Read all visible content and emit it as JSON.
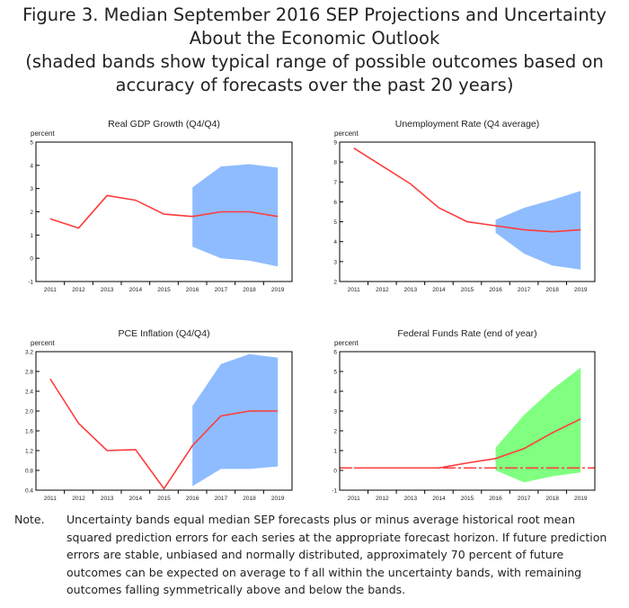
{
  "title": {
    "lines": [
      "Figure 3. Median September 2016 SEP Projections and Uncertainty",
      "About the Economic Outlook",
      "(shaded bands show typical range of possible outcomes based on",
      "accuracy of forecasts over the past 20 years)"
    ]
  },
  "note": {
    "label": "Note.",
    "text": "Uncertainty bands equal median SEP forecasts plus or minus average historical root mean squared prediction errors for each series at the appropriate forecast horizon. If future prediction errors are stable, unbiased and normally distributed, approximately 70 percent of future outcomes can be expected on average to f all within the uncertainty bands, with remaining outcomes falling symmetrically above and below the bands."
  },
  "colors": {
    "line": "#ff3b3b",
    "band_blue": "#8fbcff",
    "band_green": "#80ff80",
    "axis": "#000000"
  },
  "chart_data": [
    {
      "type": "line",
      "title": "Real GDP Growth (Q4/Q4)",
      "ylabel": "percent",
      "categories": [
        "2011",
        "2012",
        "2013",
        "2014",
        "2015",
        "2016",
        "2017",
        "2018",
        "2019"
      ],
      "ylim": [
        -1,
        5
      ],
      "yticks": [
        "-1",
        "0",
        "1",
        "2",
        "3",
        "4",
        "5"
      ],
      "series": [
        {
          "values": [
            1.7,
            1.3,
            2.7,
            2.5,
            1.9,
            1.8,
            2.0,
            2.0,
            1.8
          ]
        }
      ],
      "band": {
        "categories": [
          "2016",
          "2017",
          "2018",
          "2019"
        ],
        "upper": [
          3.05,
          3.95,
          4.05,
          3.9
        ],
        "lower": [
          0.5,
          0.0,
          -0.1,
          -0.35
        ],
        "color": "#8fbcff"
      }
    },
    {
      "type": "line",
      "title": "Unemployment Rate (Q4 average)",
      "ylabel": "percent",
      "categories": [
        "2011",
        "2012",
        "2013",
        "2014",
        "2015",
        "2016",
        "2017",
        "2018",
        "2019"
      ],
      "ylim": [
        2,
        9
      ],
      "yticks": [
        "2",
        "3",
        "4",
        "5",
        "6",
        "7",
        "8",
        "9"
      ],
      "series": [
        {
          "values": [
            8.7,
            7.8,
            6.9,
            5.7,
            5.0,
            4.8,
            4.6,
            4.5,
            4.6
          ]
        }
      ],
      "band": {
        "categories": [
          "2016",
          "2017",
          "2018",
          "2019"
        ],
        "upper": [
          5.1,
          5.7,
          6.1,
          6.55
        ],
        "lower": [
          4.45,
          3.4,
          2.8,
          2.6
        ],
        "color": "#8fbcff"
      }
    },
    {
      "type": "line",
      "title": "PCE Inflation (Q4/Q4)",
      "ylabel": "percent",
      "categories": [
        "2011",
        "2012",
        "2013",
        "2014",
        "2015",
        "2016",
        "2017",
        "2018",
        "2019"
      ],
      "ylim": [
        0.4,
        3.2
      ],
      "yticks": [
        "0.4",
        "0.8",
        "1.2",
        "1.6",
        "2.0",
        "2.4",
        "2.8",
        "3.2"
      ],
      "series": [
        {
          "values": [
            2.65,
            1.75,
            1.2,
            1.22,
            0.43,
            1.3,
            1.9,
            2.0,
            2.0
          ]
        }
      ],
      "band": {
        "categories": [
          "2016",
          "2017",
          "2018",
          "2019"
        ],
        "upper": [
          2.1,
          2.95,
          3.15,
          3.08
        ],
        "lower": [
          0.48,
          0.83,
          0.83,
          0.88
        ],
        "color": "#8fbcff"
      }
    },
    {
      "type": "line",
      "title": "Federal Funds Rate (end of year)",
      "ylabel": "percent",
      "categories": [
        "2011",
        "2012",
        "2013",
        "2014",
        "2015",
        "2016",
        "2017",
        "2018",
        "2019"
      ],
      "ylim": [
        -1,
        6
      ],
      "yticks": [
        "-1",
        "0",
        "1",
        "2",
        "3",
        "4",
        "5",
        "6"
      ],
      "series": [
        {
          "values": [
            0.125,
            0.125,
            0.125,
            0.125,
            0.375,
            0.6,
            1.1,
            1.9,
            2.6
          ]
        },
        {
          "style": "dash-dot",
          "values": [
            0.125,
            0.125,
            0.125,
            0.125,
            0.125,
            0.125,
            0.125,
            0.125,
            0.125
          ]
        }
      ],
      "band": {
        "categories": [
          "2016",
          "2017",
          "2018",
          "2019"
        ],
        "upper": [
          1.15,
          2.8,
          4.1,
          5.2
        ],
        "lower": [
          0.0,
          -0.6,
          -0.3,
          -0.1
        ],
        "color": "#80ff80"
      }
    }
  ]
}
